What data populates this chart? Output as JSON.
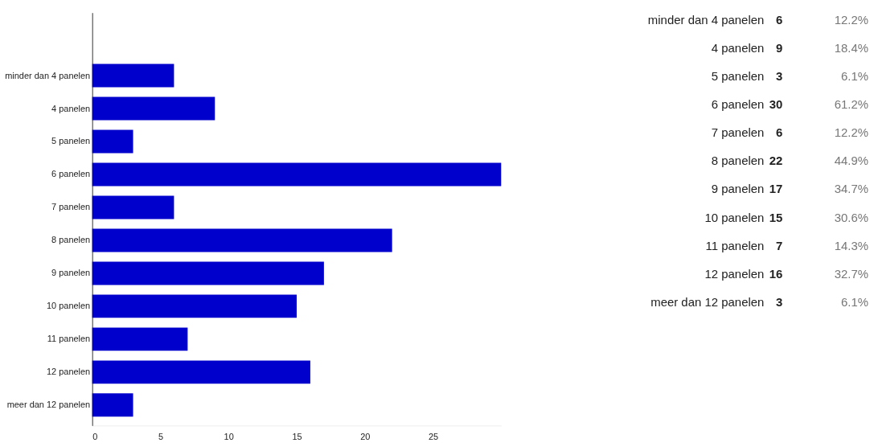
{
  "chart_data": [
    {
      "type": "bar",
      "orientation": "horizontal",
      "categories": [
        "minder dan 4 panelen",
        "4 panelen",
        "5 panelen",
        "6 panelen",
        "7 panelen",
        "8 panelen",
        "9 panelen",
        "10 panelen",
        "11 panelen",
        "12 panelen",
        "meer dan 12 panelen"
      ],
      "values": [
        6,
        9,
        3,
        30,
        6,
        22,
        17,
        15,
        7,
        16,
        3
      ],
      "color": "#0000cc",
      "xlim": [
        0,
        30
      ],
      "xticks": [
        0,
        5,
        10,
        15,
        20,
        25
      ],
      "grid": false
    },
    {
      "type": "other",
      "categories": [
        "minder dan 4 panelen",
        "4 panelen",
        "5 panelen",
        "6 panelen",
        "7 panelen",
        "8 panelen",
        "9 panelen",
        "10 panelen",
        "11 panelen",
        "12 panelen",
        "meer dan 12 panelen"
      ],
      "values": [
        6,
        9,
        3,
        30,
        6,
        22,
        17,
        15,
        7,
        16,
        3
      ],
      "data_labels": true
    },
    {
      "type": "other",
      "values": [
        12.2,
        18.4,
        6.1,
        61.2,
        12.2,
        44.9,
        34.7,
        30.6,
        14.3,
        32.7,
        6.1
      ],
      "value_labels": [
        "12.2%",
        "18.4%",
        "6.1%",
        "61.2%",
        "12.2%",
        "44.9%",
        "34.7%",
        "30.6%",
        "14.3%",
        "32.7%",
        "6.1%"
      ]
    }
  ]
}
